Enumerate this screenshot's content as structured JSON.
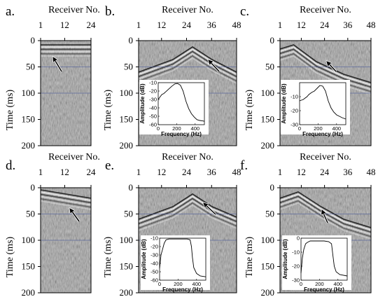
{
  "figure": {
    "panels": [
      {
        "id": "a",
        "letter": "a.",
        "receiver_ticks": [
          "1",
          "12",
          "24"
        ],
        "time_ticks": [
          "0",
          "50",
          "100",
          "150",
          "200"
        ],
        "inset": null
      },
      {
        "id": "b",
        "letter": "b.",
        "receiver_ticks": [
          "1",
          "12",
          "24",
          "36",
          "48"
        ],
        "time_ticks": [
          "0",
          "50",
          "100",
          "150",
          "200"
        ],
        "inset": {
          "y_ticks": [
            "-10",
            "-20",
            "-30",
            "-40",
            "-50",
            "-60"
          ],
          "x_ticks": [
            "0",
            "200",
            "400"
          ],
          "ylim": [
            -60,
            -10
          ],
          "xlim": [
            0,
            500
          ],
          "curve": [
            [
              0,
              -30
            ],
            [
              20,
              -27
            ],
            [
              40,
              -24
            ],
            [
              60,
              -23
            ],
            [
              80,
              -21
            ],
            [
              100,
              -19
            ],
            [
              120,
              -17
            ],
            [
              150,
              -14
            ],
            [
              180,
              -11.5
            ],
            [
              210,
              -11
            ],
            [
              240,
              -13
            ],
            [
              270,
              -20
            ],
            [
              300,
              -32
            ],
            [
              330,
              -41
            ],
            [
              360,
              -47
            ],
            [
              390,
              -51
            ],
            [
              420,
              -54
            ],
            [
              450,
              -55
            ],
            [
              480,
              -55.5
            ],
            [
              500,
              -56
            ]
          ]
        }
      },
      {
        "id": "c",
        "letter": "c.",
        "receiver_ticks": [
          "1",
          "12",
          "24",
          "36",
          "48"
        ],
        "time_ticks": [
          "0",
          "50",
          "100",
          "150",
          "200"
        ],
        "inset": {
          "y_ticks": [
            "-10",
            "-20",
            "-30"
          ],
          "x_ticks": [
            "0",
            "200",
            "400"
          ],
          "ylim": [
            -30,
            0
          ],
          "xlim": [
            0,
            500
          ],
          "curve": [
            [
              0,
              -13
            ],
            [
              20,
              -12.5
            ],
            [
              40,
              -12
            ],
            [
              60,
              -11
            ],
            [
              80,
              -10
            ],
            [
              100,
              -8.5
            ],
            [
              130,
              -7
            ],
            [
              160,
              -6
            ],
            [
              190,
              -4
            ],
            [
              220,
              -2
            ],
            [
              250,
              -2.5
            ],
            [
              280,
              -6
            ],
            [
              310,
              -13
            ],
            [
              340,
              -18
            ],
            [
              370,
              -21
            ],
            [
              400,
              -23
            ],
            [
              430,
              -24
            ],
            [
              460,
              -25
            ],
            [
              500,
              -26
            ]
          ]
        }
      },
      {
        "id": "d",
        "letter": "d.",
        "receiver_ticks": [
          "1",
          "12",
          "24"
        ],
        "time_ticks": [
          "0",
          "50",
          "100",
          "150",
          "200"
        ],
        "inset": null
      },
      {
        "id": "e",
        "letter": "e.",
        "receiver_ticks": [
          "1",
          "12",
          "24",
          "36",
          "48"
        ],
        "time_ticks": [
          "0",
          "50",
          "100",
          "150",
          "200"
        ],
        "inset": {
          "y_ticks": [
            "-10",
            "-20",
            "-30",
            "-40",
            "-50",
            "-60"
          ],
          "x_ticks": [
            "0",
            "200",
            "400"
          ],
          "ylim": [
            -60,
            -10
          ],
          "xlim": [
            0,
            500
          ],
          "curve": [
            [
              0,
              -46
            ],
            [
              15,
              -30
            ],
            [
              30,
              -24
            ],
            [
              50,
              -16
            ],
            [
              70,
              -12
            ],
            [
              100,
              -11
            ],
            [
              150,
              -11
            ],
            [
              200,
              -11
            ],
            [
              250,
              -11
            ],
            [
              300,
              -11
            ],
            [
              330,
              -12
            ],
            [
              345,
              -20
            ],
            [
              355,
              -33
            ],
            [
              370,
              -45
            ],
            [
              400,
              -52
            ],
            [
              440,
              -55
            ],
            [
              500,
              -56
            ]
          ]
        }
      },
      {
        "id": "f",
        "letter": "f.",
        "receiver_ticks": [
          "1",
          "12",
          "24",
          "36",
          "48"
        ],
        "time_ticks": [
          "0",
          "50",
          "100",
          "150",
          "200"
        ],
        "inset": {
          "y_ticks": [
            "0",
            "-10",
            "-20",
            "-30"
          ],
          "x_ticks": [
            "0",
            "200",
            "400"
          ],
          "ylim": [
            -30,
            0
          ],
          "xlim": [
            0,
            500
          ],
          "curve": [
            [
              0,
              -25
            ],
            [
              15,
              -14
            ],
            [
              30,
              -8
            ],
            [
              50,
              -4
            ],
            [
              70,
              -3
            ],
            [
              100,
              -2
            ],
            [
              150,
              -2
            ],
            [
              200,
              -2
            ],
            [
              250,
              -2
            ],
            [
              300,
              -2.5
            ],
            [
              330,
              -4
            ],
            [
              345,
              -12
            ],
            [
              360,
              -20
            ],
            [
              380,
              -24
            ],
            [
              420,
              -26
            ],
            [
              500,
              -27
            ]
          ]
        }
      }
    ],
    "receiver_label": "Receiver No.",
    "time_label": "Time (ms)",
    "inset_xlabel": "Frequency (Hz)",
    "inset_ylabel": "Amplitude (dB)",
    "colors": {
      "seismic_bg": "#8e8e8e",
      "grid_line": "#4a5a9a",
      "text": "#000000"
    }
  }
}
